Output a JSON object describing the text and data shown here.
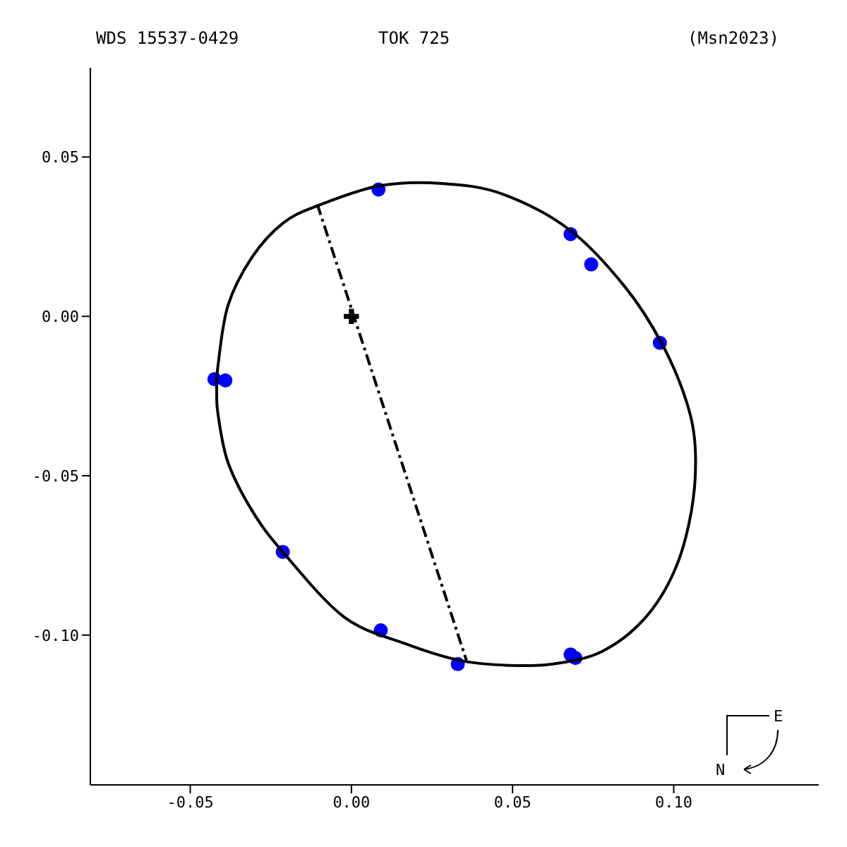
{
  "chart_data": {
    "type": "scatter",
    "annotations": [
      "WDS 15537-0429",
      "TOK 725",
      "(Msn2023)",
      "E",
      "N"
    ],
    "xlim": [
      -0.081,
      0.145
    ],
    "ylim": [
      -0.147,
      0.078
    ],
    "xticks": [
      {
        "value": -0.05,
        "label": "-0.05"
      },
      {
        "value": 0,
        "label": "0.00"
      },
      {
        "value": 0.05,
        "label": "0.05"
      },
      {
        "value": 0.1,
        "label": "0.10"
      }
    ],
    "yticks": [
      {
        "value": -0.1,
        "label": "-0.10"
      },
      {
        "value": -0.05,
        "label": "-0.05"
      },
      {
        "value": 0,
        "label": "0.00"
      },
      {
        "value": 0.05,
        "label": "0.05"
      }
    ],
    "series": [
      {
        "type": "line",
        "color": "#000000",
        "line_style": "dashed",
        "x": [
          -0.0106,
          0.0357
        ],
        "values": [
          0.0352,
          -0.108
        ]
      },
      {
        "color": "#0000ff",
        "marker": "circle",
        "x": [
          0.0084,
          0.068,
          0.0744,
          0.0957,
          -0.0425,
          -0.0391,
          -0.0213,
          0.0091,
          0.033,
          0.068,
          0.0695
        ],
        "values": [
          0.0398,
          0.0258,
          0.0163,
          -0.0083,
          -0.0197,
          -0.0201,
          -0.0739,
          -0.0985,
          -0.1091,
          -0.1061,
          -0.1072
        ]
      },
      {
        "color": "#000000",
        "marker": "cross",
        "x": [
          0
        ],
        "values": [
          0
        ]
      }
    ]
  }
}
